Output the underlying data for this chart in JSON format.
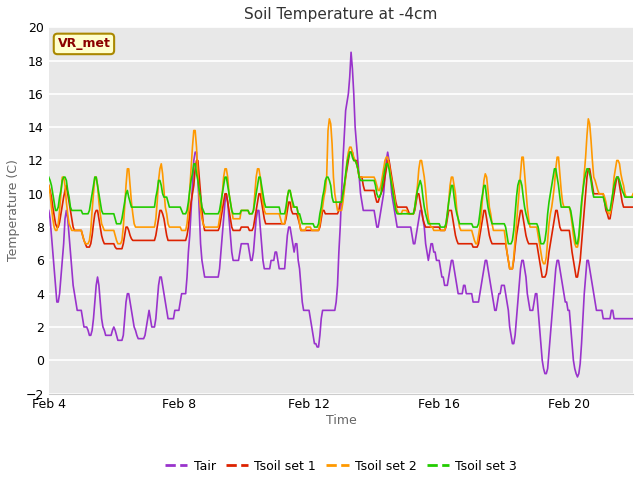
{
  "title": "Soil Temperature at -4cm",
  "xlabel": "Time",
  "ylabel": "Temperature (C)",
  "ylim": [
    -2,
    20
  ],
  "yticks": [
    -2,
    0,
    2,
    4,
    6,
    8,
    10,
    12,
    14,
    16,
    18,
    20
  ],
  "xtick_labels": [
    "Feb 4",
    "Feb 8",
    "Feb 12",
    "Feb 16",
    "Feb 20"
  ],
  "xtick_positions": [
    0,
    96,
    192,
    288,
    384
  ],
  "n_points": 432,
  "annotation_text": "VR_met",
  "line_colors": {
    "Tair": "#9933cc",
    "Tsoil set 1": "#dd2200",
    "Tsoil set 2": "#ff9900",
    "Tsoil set 3": "#22cc00"
  },
  "legend_labels": [
    "Tair",
    "Tsoil set 1",
    "Tsoil set 2",
    "Tsoil set 3"
  ],
  "fig_facecolor": "#ffffff",
  "plot_facecolor": "#e8e8e8",
  "grid_color": "#ffffff",
  "title_fontsize": 11,
  "axis_label_fontsize": 9,
  "tick_fontsize": 9,
  "legend_fontsize": 9,
  "line_width": 1.2
}
